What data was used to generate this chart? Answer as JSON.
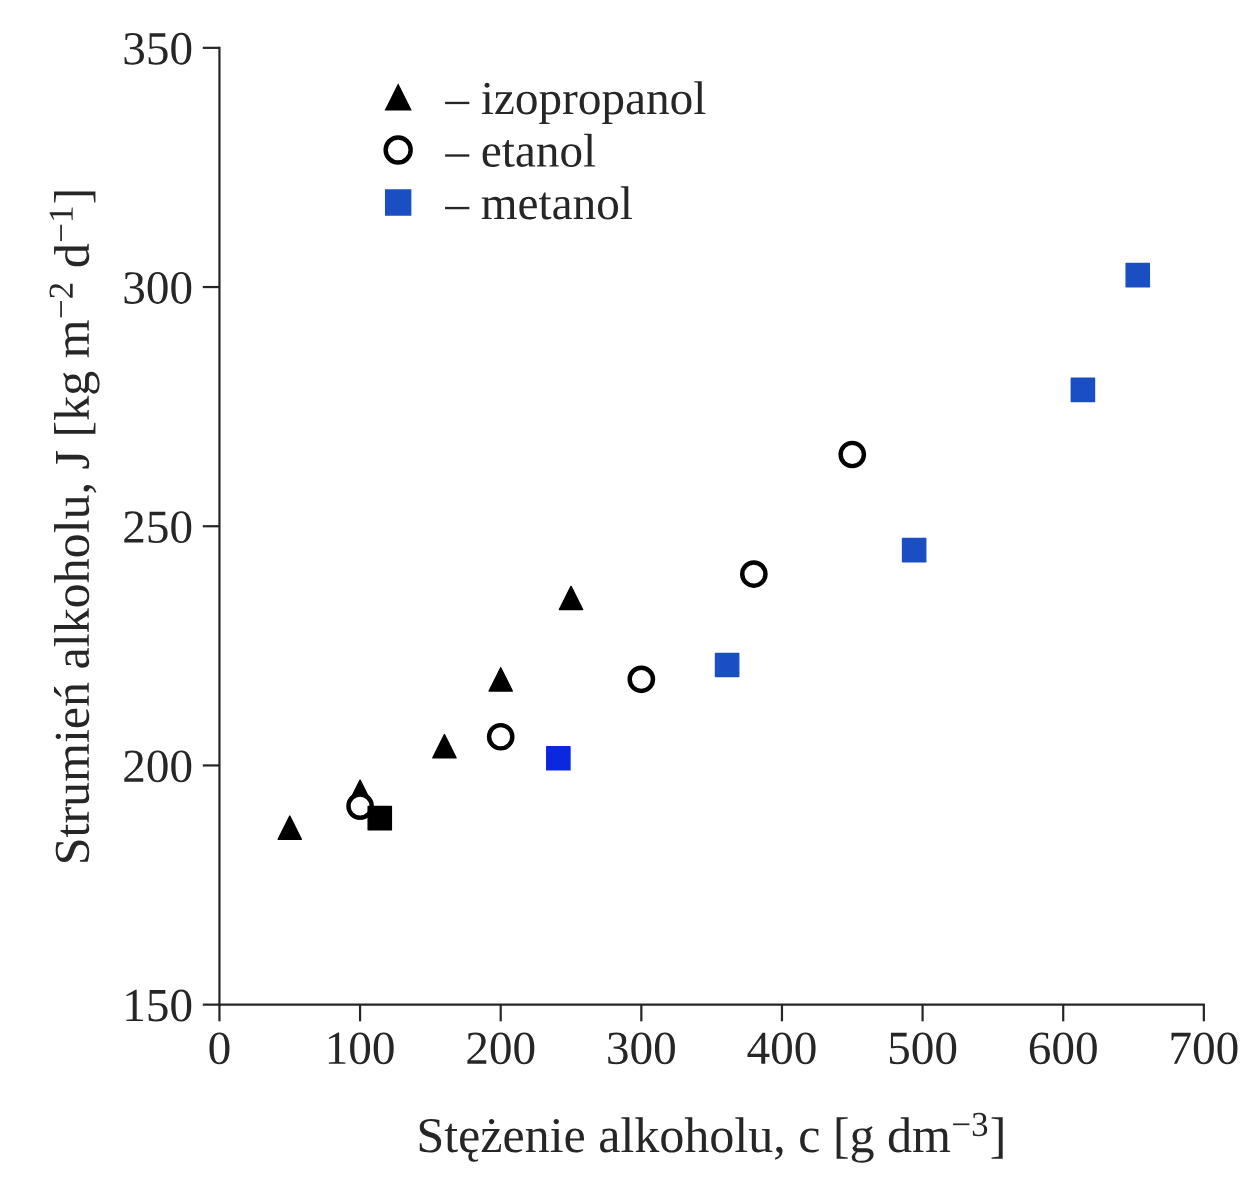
{
  "chart_data": {
    "type": "scatter",
    "xlabel": "Stężenie alkoholu, c [g dm$^{−3}$]",
    "ylabel": "Strumień alkoholu, J [kg m$^{−2}$ d$^{−1}$]",
    "xlim": [
      0,
      700
    ],
    "xticks": [
      0,
      100,
      200,
      300,
      400,
      500,
      600,
      700
    ],
    "ylim": [
      150,
      350
    ],
    "yticks": [
      150,
      200,
      250,
      300,
      350
    ],
    "grid": false,
    "legend": "top left",
    "series": [
      {
        "name": "– izopropanol",
        "color": "#000000",
        "marker": "triangle",
        "x": [
          50,
          100,
          160,
          200,
          250
        ],
        "values": [
          187,
          194.5,
          204,
          218,
          235
        ]
      },
      {
        "name": "– etanol",
        "color": "#000000",
        "marker": "circle",
        "x": [
          100,
          200,
          300,
          380,
          450
        ],
        "values": [
          191.5,
          206,
          218,
          240,
          265
        ]
      },
      {
        "name": "– metanol",
        "color": "#1a4fc4",
        "marker": "square",
        "x": [
          114,
          241,
          361,
          494,
          614,
          653
        ],
        "values": [
          189,
          201.5,
          221,
          245,
          278.5,
          302.5
        ],
        "colors": [
          "#000000",
          "#0a28e0",
          "#1a4fc4",
          "#1a4fc4",
          "#1a4fc4",
          "#1a4fc4"
        ]
      }
    ]
  }
}
